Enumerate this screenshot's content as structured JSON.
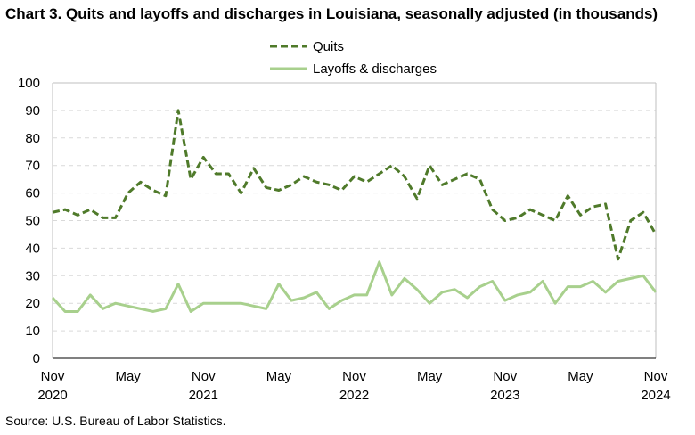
{
  "chart_data": {
    "type": "line",
    "title": "Chart 3. Quits and layoffs and discharges in Louisiana, seasonally adjusted (in thousands)",
    "source": "Source: U.S. Bureau of Labor Statistics.",
    "ylim": [
      0,
      100
    ],
    "yticks": [
      "0",
      "10",
      "20",
      "30",
      "40",
      "50",
      "60",
      "70",
      "80",
      "90",
      "100"
    ],
    "xlim": [
      0,
      48
    ],
    "xticks": [
      {
        "month": "Nov",
        "year": "2020",
        "index": 0
      },
      {
        "month": "May",
        "year": "",
        "index": 6
      },
      {
        "month": "Nov",
        "year": "2021",
        "index": 12
      },
      {
        "month": "May",
        "year": "",
        "index": 18
      },
      {
        "month": "Nov",
        "year": "2022",
        "index": 24
      },
      {
        "month": "May",
        "year": "",
        "index": 30
      },
      {
        "month": "Nov",
        "year": "2023",
        "index": 36
      },
      {
        "month": "May",
        "year": "",
        "index": 42
      },
      {
        "month": "Nov",
        "year": "2024",
        "index": 48
      }
    ],
    "grid": "horizontal dashed",
    "legend_position": "top-center",
    "series": [
      {
        "name": "Quits",
        "style": "dashed",
        "color": "#4f7a2a",
        "values": [
          53,
          54,
          52,
          54,
          51,
          51,
          60,
          64,
          61,
          59,
          90,
          65,
          73,
          67,
          67,
          60,
          69,
          62,
          61,
          63,
          66,
          64,
          63,
          61,
          66,
          64,
          67,
          70,
          66,
          58,
          70,
          63,
          65,
          67,
          65,
          54,
          50,
          51,
          54,
          52,
          50,
          59,
          52,
          55,
          56,
          36,
          50,
          53,
          45
        ]
      },
      {
        "name": "Layoffs & discharges",
        "style": "solid",
        "color": "#a8d08d",
        "values": [
          22,
          17,
          17,
          23,
          18,
          20,
          19,
          18,
          17,
          18,
          27,
          17,
          20,
          20,
          20,
          20,
          19,
          18,
          27,
          21,
          22,
          24,
          18,
          21,
          23,
          23,
          35,
          23,
          29,
          25,
          20,
          24,
          25,
          22,
          26,
          28,
          21,
          23,
          24,
          28,
          20,
          26,
          26,
          28,
          24,
          28,
          29,
          30,
          24
        ]
      }
    ]
  }
}
